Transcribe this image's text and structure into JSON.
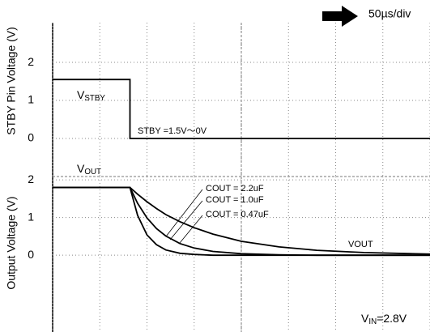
{
  "chart_data": [
    {
      "type": "line",
      "y_label": "STBY Pin Voltage (V)",
      "xlim": [
        0,
        400
      ],
      "xticks": [
        0,
        50,
        100,
        150,
        200,
        250,
        300,
        350,
        400
      ],
      "ylim": [
        -1,
        3.64
      ],
      "yticks": [
        0,
        1,
        2
      ],
      "grid": true,
      "x": [
        0,
        82,
        82,
        400
      ],
      "series": [
        {
          "name": {
            "main": "V",
            "sub": "STBY"
          },
          "color": "#000000",
          "values": [
            1.55,
            1.55,
            0,
            0
          ]
        }
      ],
      "annotations": [
        "50µs/div",
        "STBY =1.5V～0V"
      ]
    },
    {
      "type": "line",
      "y_label": "Output Voltage (V)",
      "xlim": [
        0,
        400
      ],
      "xticks": [
        0,
        50,
        100,
        150,
        200,
        250,
        300,
        350,
        400
      ],
      "ylim": [
        -2.04,
        2.09
      ],
      "yticks": [
        0,
        1,
        2
      ],
      "grid": true,
      "x": [
        0,
        82,
        90,
        100,
        110,
        120,
        135,
        150,
        170,
        200,
        240,
        280,
        330,
        400
      ],
      "series": [
        {
          "name": "COUT = 2.2uF",
          "color": "#000000",
          "values": [
            1.8,
            1.8,
            1.62,
            1.42,
            1.24,
            1.08,
            0.89,
            0.73,
            0.56,
            0.37,
            0.22,
            0.13,
            0.07,
            0.03
          ]
        },
        {
          "name": "COUT = 1.0uF",
          "color": "#000000",
          "values": [
            1.8,
            1.8,
            1.38,
            0.99,
            0.71,
            0.51,
            0.31,
            0.19,
            0.1,
            0.04,
            0.01,
            0,
            0,
            0
          ]
        },
        {
          "name": "COUT = 0.47uF",
          "color": "#000000",
          "values": [
            1.8,
            1.8,
            1.06,
            0.54,
            0.28,
            0.14,
            0.05,
            0.02,
            0,
            0,
            0,
            0,
            0,
            0
          ]
        }
      ],
      "trace_label": {
        "main": "V",
        "sub": "OUT"
      },
      "annotations": [
        "VOUT"
      ],
      "supply_label": {
        "main": "V",
        "sub": "IN",
        "rest": "=2.8V"
      }
    }
  ]
}
